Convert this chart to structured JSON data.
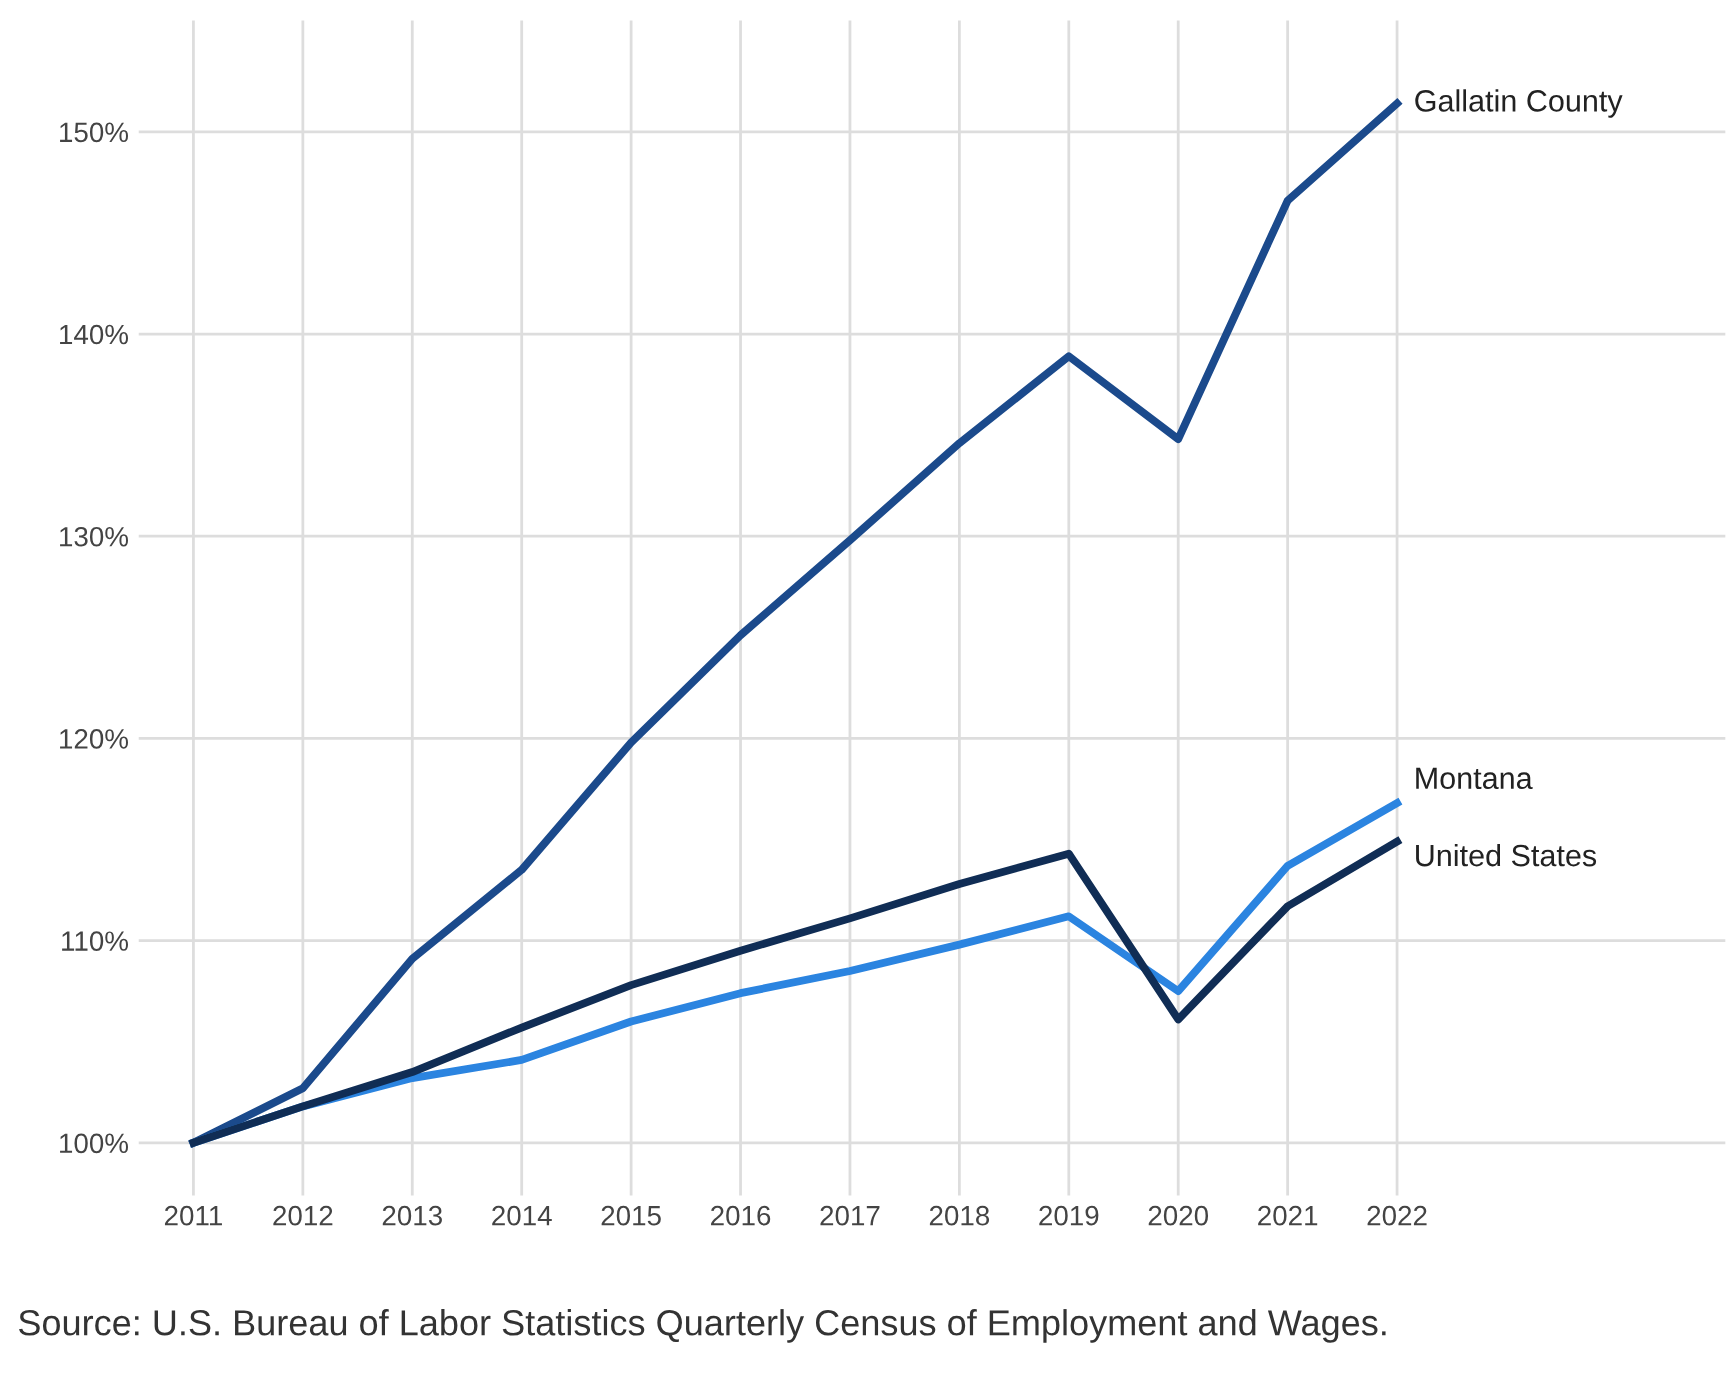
{
  "chart_data": {
    "type": "line",
    "x": [
      2011,
      2012,
      2013,
      2014,
      2015,
      2016,
      2017,
      2018,
      2019,
      2020,
      2021,
      2022
    ],
    "series": [
      {
        "name": "Gallatin County",
        "color": "#1b4a8c",
        "values": [
          100,
          102.7,
          109.1,
          113.5,
          119.8,
          125.1,
          129.8,
          134.6,
          138.9,
          134.8,
          146.6,
          151.4
        ]
      },
      {
        "name": "Montana",
        "color": "#2b84e0",
        "values": [
          100,
          101.8,
          103.2,
          104.1,
          106.0,
          107.4,
          108.5,
          109.8,
          111.2,
          107.5,
          113.7,
          116.8
        ]
      },
      {
        "name": "United States",
        "color": "#102d55",
        "values": [
          100,
          101.8,
          103.5,
          105.7,
          107.8,
          109.5,
          111.1,
          112.8,
          114.3,
          106.1,
          111.7,
          114.9
        ]
      }
    ],
    "xlim": [
      2010.5,
      2025
    ],
    "xticks": [
      2011,
      2012,
      2013,
      2014,
      2015,
      2016,
      2017,
      2018,
      2019,
      2020,
      2021,
      2022
    ],
    "ylim": [
      97.4,
      155.5
    ],
    "yticks": [
      {
        "value": 100,
        "label": "100%"
      },
      {
        "value": 110,
        "label": "110%"
      },
      {
        "value": 120,
        "label": "120%"
      },
      {
        "value": 130,
        "label": "130%"
      },
      {
        "value": 140,
        "label": "140%"
      },
      {
        "value": 150,
        "label": "150%"
      }
    ],
    "grid": true,
    "legend": false,
    "marker": "none",
    "line_style": "solid",
    "annotations": [
      "Source: U.S. Bureau of Labor Statistics Quarterly Census of Employment and Wages."
    ]
  }
}
